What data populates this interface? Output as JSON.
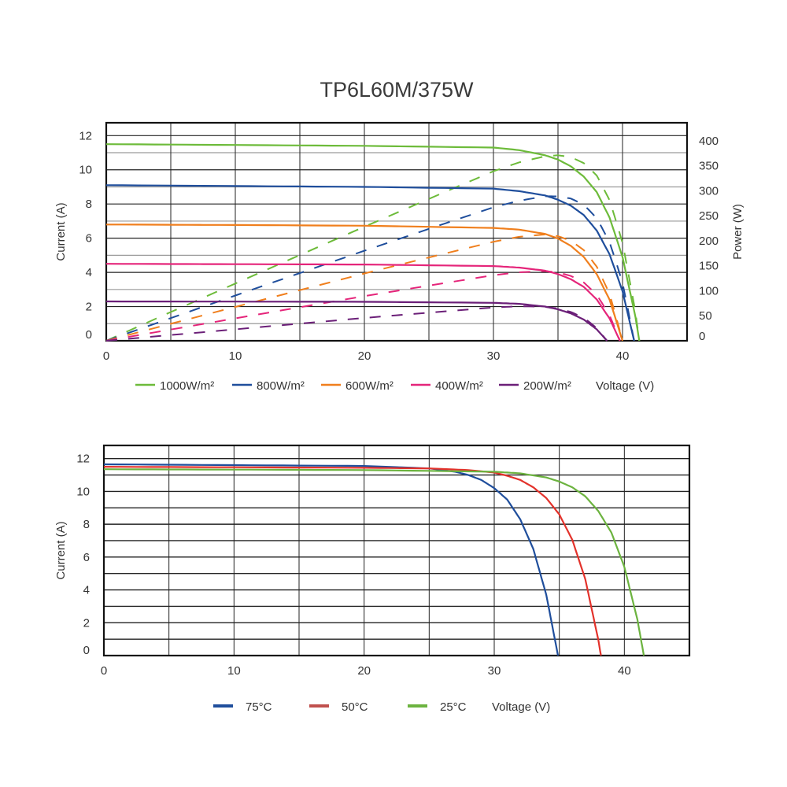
{
  "title": "TP6L60M/375W",
  "chart_data": [
    {
      "type": "line",
      "title": "TP6L60M/375W",
      "xlabel": "Voltage (V)",
      "ylabel": "Current (A)",
      "y2label": "Power (W)",
      "xlim": [
        0,
        45
      ],
      "ylim": [
        0,
        12.75
      ],
      "y2lim": [
        0,
        436
      ],
      "xticks": [
        "0",
        "10",
        "20",
        "30",
        "40"
      ],
      "xtick_values": [
        0,
        10,
        20,
        30,
        40
      ],
      "yticks": [
        "0",
        "2",
        "4",
        "6",
        "8",
        "10",
        "12"
      ],
      "ytick_values": [
        0,
        2,
        4,
        6,
        8,
        10,
        12
      ],
      "y2ticks": [
        "0",
        "50",
        "100",
        "150",
        "200",
        "250",
        "300",
        "350",
        "400"
      ],
      "y2tick_values": [
        0,
        50,
        100,
        150,
        200,
        250,
        300,
        350,
        400
      ],
      "grid": true,
      "legend_position": "bottom",
      "power_curves": "dashed, power = voltage × current on right axis",
      "series": [
        {
          "name": "1000W/m²",
          "color": "#6dbb3a",
          "v": [
            0,
            10,
            20,
            30,
            32,
            34,
            35,
            36,
            37,
            38,
            39,
            40,
            41,
            41.3
          ],
          "i": [
            11.5,
            11.45,
            11.4,
            11.3,
            11.15,
            10.85,
            10.6,
            10.2,
            9.6,
            8.7,
            7.2,
            4.9,
            1.4,
            0
          ]
        },
        {
          "name": "800W/m²",
          "color": "#1f4e9c",
          "v": [
            0,
            10,
            20,
            30,
            32,
            34,
            35,
            36,
            37,
            38,
            39,
            40,
            40.9
          ],
          "i": [
            9.1,
            9.05,
            9.0,
            8.9,
            8.75,
            8.5,
            8.25,
            7.9,
            7.35,
            6.45,
            5.05,
            2.9,
            0
          ]
        },
        {
          "name": "600W/m²",
          "color": "#f07f1d",
          "v": [
            0,
            10,
            20,
            30,
            32,
            34,
            35,
            36,
            37,
            38,
            39,
            40
          ],
          "i": [
            6.8,
            6.77,
            6.73,
            6.6,
            6.5,
            6.25,
            5.98,
            5.55,
            4.9,
            3.9,
            2.4,
            0
          ]
        },
        {
          "name": "400W/m²",
          "color": "#e5257a",
          "v": [
            0,
            10,
            20,
            30,
            32,
            34,
            35,
            36,
            37,
            38,
            39,
            39.8
          ],
          "i": [
            4.5,
            4.48,
            4.46,
            4.37,
            4.28,
            4.1,
            3.9,
            3.6,
            3.15,
            2.42,
            1.3,
            0
          ]
        },
        {
          "name": "200W/m²",
          "color": "#6b1f78",
          "v": [
            0,
            10,
            20,
            30,
            32,
            34,
            35,
            36,
            37,
            38,
            38.8
          ],
          "i": [
            2.3,
            2.29,
            2.28,
            2.22,
            2.16,
            2.0,
            1.84,
            1.6,
            1.24,
            0.67,
            0
          ]
        }
      ]
    },
    {
      "type": "line",
      "xlabel": "Voltage (V)",
      "ylabel": "Current (A)",
      "xlim": [
        0,
        45
      ],
      "ylim": [
        0,
        12.8
      ],
      "xticks": [
        "0",
        "10",
        "20",
        "30",
        "40"
      ],
      "xtick_values": [
        0,
        10,
        20,
        30,
        40
      ],
      "yticks": [
        "0",
        "2",
        "4",
        "6",
        "8",
        "10",
        "12"
      ],
      "ytick_values": [
        0,
        2,
        4,
        6,
        8,
        10,
        12
      ],
      "grid": true,
      "legend_position": "bottom",
      "series": [
        {
          "name": "75°C",
          "color": "#1f4e9c",
          "v": [
            0,
            10,
            20,
            25,
            27,
            28,
            29,
            30,
            31,
            32,
            33,
            34,
            34.9
          ],
          "i": [
            11.65,
            11.6,
            11.55,
            11.4,
            11.2,
            11.0,
            10.7,
            10.2,
            9.5,
            8.3,
            6.5,
            3.7,
            0
          ]
        },
        {
          "name": "50°C",
          "color": "#e3322b",
          "legend_color": "#c0504d",
          "v": [
            0,
            10,
            20,
            25,
            28,
            30,
            31,
            32,
            33,
            34,
            35,
            36,
            37,
            38,
            38.2
          ],
          "i": [
            11.5,
            11.47,
            11.44,
            11.4,
            11.3,
            11.15,
            10.95,
            10.7,
            10.25,
            9.6,
            8.6,
            7.05,
            4.65,
            0.95,
            0
          ]
        },
        {
          "name": "25°C",
          "color": "#6cb33f",
          "v": [
            0,
            10,
            20,
            30,
            32,
            34,
            35,
            36,
            37,
            38,
            39,
            40,
            41,
            41.5
          ],
          "i": [
            11.35,
            11.33,
            11.3,
            11.2,
            11.1,
            10.85,
            10.6,
            10.25,
            9.7,
            8.8,
            7.5,
            5.4,
            2.2,
            0
          ]
        }
      ]
    }
  ]
}
